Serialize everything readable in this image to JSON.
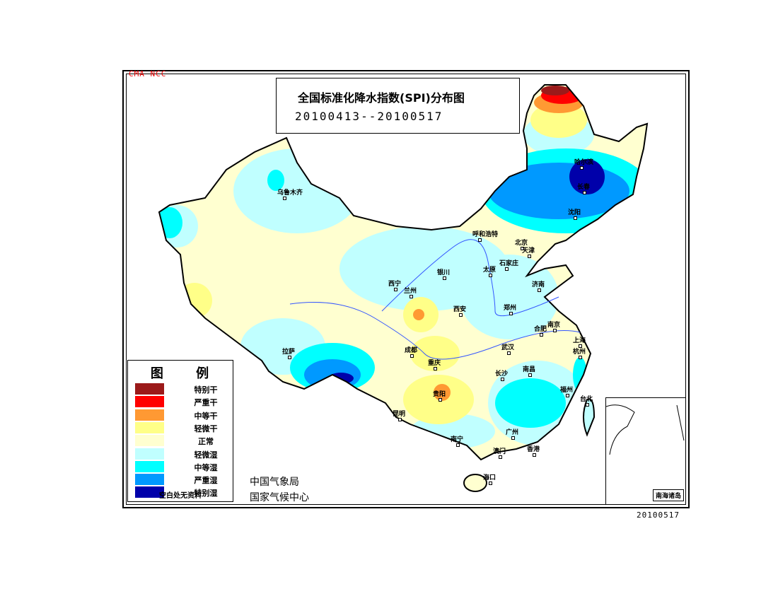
{
  "header": {
    "tag": "CMA NCC",
    "title": "全国标准化降水指数(SPI)分布图",
    "period": "20100413--20100517"
  },
  "legend": {
    "title": "图 例",
    "items": [
      {
        "label": "特别干",
        "color": "#9b1a1a"
      },
      {
        "label": "严重干",
        "color": "#ff0000"
      },
      {
        "label": "中等干",
        "color": "#ff9933"
      },
      {
        "label": "轻微干",
        "color": "#ffff88"
      },
      {
        "label": "正常",
        "color": "#ffffd0"
      },
      {
        "label": "轻微湿",
        "color": "#c0ffff"
      },
      {
        "label": "中等湿",
        "color": "#00ffff"
      },
      {
        "label": "严重湿",
        "color": "#0099ff"
      },
      {
        "label": "特别湿",
        "color": "#0000aa"
      }
    ],
    "note": "空白处无资料"
  },
  "agency": {
    "line1": "中国气象局",
    "line2": "国家气候中心"
  },
  "inset": {
    "label": "南海诸岛"
  },
  "footer": {
    "date": "20100517"
  },
  "cities": [
    "乌鲁木齐",
    "哈尔滨",
    "长春",
    "沈阳",
    "呼和浩特",
    "北京",
    "天津",
    "石家庄",
    "太原",
    "银川",
    "西宁",
    "兰州",
    "西安",
    "郑州",
    "济南",
    "合肥",
    "南京",
    "上海",
    "杭州",
    "武汉",
    "南昌",
    "长沙",
    "福州",
    "台北",
    "成都",
    "重庆",
    "贵阳",
    "昆明",
    "南宁",
    "广州",
    "澳门",
    "香港",
    "海口",
    "拉萨"
  ]
}
